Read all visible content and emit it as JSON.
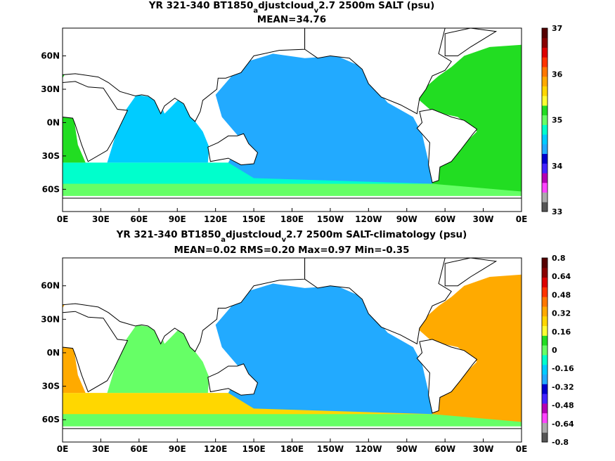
{
  "chart_data": [
    {
      "type": "heatmap",
      "title_parts": [
        "YR 321-340 BT1850",
        "a",
        "djustcloud",
        "v",
        "2.7 2500m SALT (psu)"
      ],
      "subtitle": "MEAN=34.76",
      "x_ticks": [
        "0E",
        "30E",
        "60E",
        "90E",
        "120E",
        "150E",
        "180E",
        "150W",
        "120W",
        "90W",
        "60W",
        "30W",
        "0E"
      ],
      "y_ticks": [
        "60N",
        "30N",
        "0N",
        "30S",
        "60S"
      ],
      "y_values": [
        60,
        30,
        0,
        -30,
        -60
      ],
      "ylim": [
        -80,
        85
      ],
      "colorbar": {
        "labels": [
          "33",
          "34",
          "35",
          "36",
          "37"
        ],
        "label_values": [
          33,
          34,
          35,
          36,
          37
        ],
        "range": [
          33,
          37
        ],
        "colors": [
          "#555555",
          "#aaaaaa",
          "#ff44ff",
          "#b300b3",
          "#4422ff",
          "#0000cc",
          "#22aaff",
          "#00ccff",
          "#00ffcc",
          "#66ff66",
          "#22dd22",
          "#ffff33",
          "#ffd700",
          "#ffaa00",
          "#ff7700",
          "#ff3300",
          "#dd0000",
          "#880000",
          "#550000"
        ]
      },
      "field_colors": {
        "pacific": "#22aaff",
        "indian": "#00ccff",
        "atlantic": "#22dd22",
        "southern": "#00ffcc",
        "subpolar": "#66ff66"
      }
    },
    {
      "type": "heatmap",
      "title_parts": [
        "YR 321-340 BT1850",
        "a",
        "djustcloud",
        "v",
        "2.7 2500m SALT-climatology (psu)"
      ],
      "subtitle": "MEAN=0.02   RMS=0.20   Max=0.97   Min=-0.35",
      "x_ticks": [
        "0E",
        "30E",
        "60E",
        "90E",
        "120E",
        "150E",
        "180E",
        "150W",
        "120W",
        "90W",
        "60W",
        "30W",
        "0E"
      ],
      "y_ticks": [
        "60N",
        "30N",
        "0N",
        "30S",
        "60S"
      ],
      "y_values": [
        60,
        30,
        0,
        -30,
        -60
      ],
      "ylim": [
        -80,
        85
      ],
      "colorbar": {
        "labels": [
          "0.8",
          "0.64",
          "0.48",
          "0.32",
          "0.16",
          "0",
          "-0.16",
          "-0.32",
          "-0.48",
          "-0.64",
          "-0.8"
        ],
        "label_values": [
          0.8,
          0.64,
          0.48,
          0.32,
          0.16,
          0,
          -0.16,
          -0.32,
          -0.48,
          -0.64,
          -0.8
        ],
        "range": [
          -0.8,
          0.8
        ],
        "colors": [
          "#555555",
          "#aaaaaa",
          "#ff44ff",
          "#b300b3",
          "#4422ff",
          "#0000cc",
          "#22aaff",
          "#00ccff",
          "#00ffcc",
          "#66ff66",
          "#22dd22",
          "#ffff33",
          "#ffd700",
          "#ffaa00",
          "#ff7700",
          "#ff3300",
          "#dd0000",
          "#880000",
          "#550000"
        ]
      },
      "field_colors": {
        "pacific": "#22aaff",
        "indian": "#66ff66",
        "atlantic": "#ffaa00",
        "southern": "#ffd700",
        "subpolar": "#66ff66"
      }
    }
  ]
}
